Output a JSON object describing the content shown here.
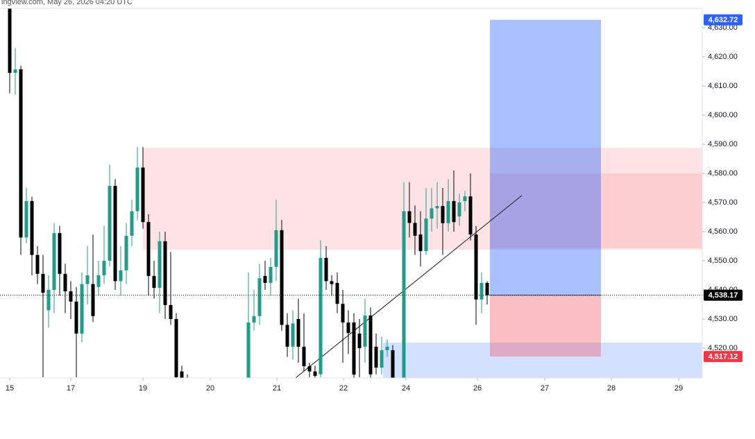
{
  "chart_data": {
    "type": "candlestick",
    "subtitle": "ingview.com, May 26, 2026 04:20 UTC",
    "x": [
      0,
      1,
      2,
      3,
      4,
      5,
      6,
      7,
      8,
      9,
      10,
      11,
      12,
      13,
      14,
      15,
      16,
      17,
      18,
      19,
      20,
      21,
      22,
      23,
      24,
      25,
      26,
      27,
      28,
      29,
      30,
      31,
      32,
      43,
      44,
      45,
      46,
      47,
      48,
      49,
      50,
      51,
      52,
      53,
      54,
      55,
      56,
      57,
      58,
      59,
      60,
      61,
      62,
      63,
      64,
      65,
      66,
      67,
      68,
      69,
      71,
      72,
      73,
      74,
      75,
      76,
      77,
      78,
      79,
      80,
      81,
      82,
      83,
      84,
      85,
      86
    ],
    "open": [
      4638,
      4614.5,
      4615.7,
      4558,
      4570.5,
      4552,
      4545.5,
      4533,
      4540,
      4559.5,
      4545.5,
      4539.5,
      4536,
      4525,
      4542,
      4542,
      4541,
      4545,
      4550,
      4575.7,
      4543,
      4546.7,
      4558.6,
      4567,
      4582,
      4563.3,
      4544.8,
      4540.7,
      4556.7,
      4534.8,
      4530,
      4512,
      4508,
      4505,
      4528.8,
      4531,
      4544.8,
      4542.4,
      4547.9,
      4560.5,
      4528,
      4520.5,
      4530,
      4520.5,
      4513.8,
      4512,
      4511,
      4551,
      4543,
      4542.4,
      4535.2,
      4528.8,
      4528.8,
      4525,
      4520.5,
      4531.2,
      4520.5,
      4513.3,
      4519.3,
      4519.3,
      4509,
      4567,
      4563,
      4559,
      4553.3,
      4564.5,
      4568,
      4568.8,
      4562.9,
      4570.5,
      4565.2,
      4570.5,
      4572.1,
      4559,
      4536.7,
      4542.4
    ],
    "high": [
      4640,
      4623,
      4617,
      4575,
      4572,
      4555,
      4552,
      4545,
      4563,
      4562,
      4549,
      4543,
      4541,
      4546,
      4555,
      4559,
      4550,
      4562,
      4583,
      4578,
      4555,
      4563,
      4571,
      4589,
      4589,
      4566,
      4550,
      4560,
      4560,
      4553,
      4532,
      4514,
      4511,
      4546,
      4540,
      4549,
      4550,
      4551,
      4571,
      4564,
      4532,
      4533,
      4537,
      4532,
      4515,
      4514,
      4557,
      4555,
      4545,
      4546,
      4540,
      4533,
      4532,
      4530,
      4537,
      4534,
      4525,
      4524,
      4523,
      4521,
      4577,
      4577,
      4569,
      4567,
      4575,
      4575,
      4577,
      4575,
      4578,
      4581,
      4573,
      4574,
      4580,
      4562,
      4546,
      4543
    ],
    "low": [
      4607.5,
      4607,
      4552,
      4556,
      4545,
      4542,
      4510,
      4527,
      4532,
      4538,
      4532,
      4530,
      4510,
      4522,
      4535,
      4529,
      4538,
      4542,
      4548,
      4540,
      4538,
      4542,
      4555,
      4564,
      4561,
      4538,
      4537,
      4532,
      4530,
      4528,
      4509,
      4503,
      4500,
      4503,
      4526,
      4528,
      4540,
      4538,
      4543,
      4526,
      4517,
      4516,
      4515,
      4512,
      4510,
      4509,
      4510,
      4540,
      4538,
      4532,
      4515,
      4518,
      4509,
      4510,
      4515,
      4509,
      4511,
      4511,
      4517,
      4508,
      4508,
      4558,
      4552,
      4548,
      4552,
      4560,
      4561,
      4552,
      4560,
      4560,
      4562,
      4567,
      4557,
      4528,
      4532,
      4535
    ],
    "close": [
      4614.5,
      4615.7,
      4558,
      4570.5,
      4552,
      4545.5,
      4539,
      4540,
      4559.5,
      4545.5,
      4539.5,
      4536,
      4525,
      4542,
      4545,
      4531,
      4545,
      4550,
      4575.7,
      4543,
      4546.7,
      4558.6,
      4567,
      4582,
      4563.3,
      4544.8,
      4540.7,
      4556.7,
      4534.8,
      4530,
      4510,
      4505,
      4502,
      4528.8,
      4531,
      4544,
      4542.4,
      4547.9,
      4560.5,
      4528,
      4520.5,
      4528.5,
      4520.5,
      4513.8,
      4512,
      4510.5,
      4551,
      4543,
      4542,
      4535.2,
      4528.8,
      4525.2,
      4510.9,
      4520,
      4531.2,
      4511,
      4513.3,
      4519.3,
      4520.5,
      4509.8,
      4567,
      4563,
      4558.6,
      4553.3,
      4564.5,
      4568,
      4568.8,
      4562.9,
      4570.5,
      4563.3,
      4570,
      4572.1,
      4559,
      4536.7,
      4542.4,
      4538.17
    ],
    "up_color": "#1e9e89",
    "down_color": "#000000",
    "xlim": [
      -1.75,
      124.75
    ],
    "xticks": [
      {
        "value": 0,
        "label": "15"
      },
      {
        "value": 11,
        "label": "17"
      },
      {
        "value": 24,
        "label": "19"
      },
      {
        "value": 36.125,
        "label": "20"
      },
      {
        "value": 48.125,
        "label": "21"
      },
      {
        "value": 60.125,
        "label": "22"
      },
      {
        "value": 71.375,
        "label": "24"
      },
      {
        "value": 84.25,
        "label": "26"
      },
      {
        "value": 96.375,
        "label": "27"
      },
      {
        "value": 108.375,
        "label": "28"
      },
      {
        "value": 120.5,
        "label": "29"
      }
    ],
    "ylim": [
      4509.76,
      4636.67
    ],
    "yticks": [
      {
        "value": 4520,
        "label": "4,520.00"
      },
      {
        "value": 4530,
        "label": "4,530.00"
      },
      {
        "value": 4540,
        "label": "4,540.00"
      },
      {
        "value": 4550,
        "label": "4,550.00"
      },
      {
        "value": 4560,
        "label": "4,560.00"
      },
      {
        "value": 4570,
        "label": "4,570.00"
      },
      {
        "value": 4580,
        "label": "4,580.00"
      },
      {
        "value": 4590,
        "label": "4,590.00"
      },
      {
        "value": 4600,
        "label": "4,600.00"
      },
      {
        "value": 4610,
        "label": "4,610.00"
      },
      {
        "value": 4620,
        "label": "4,620.00"
      },
      {
        "value": 4630,
        "label": "4,630.00"
      }
    ],
    "grid": false,
    "zones": [
      {
        "x": [
          24,
          124.75
        ],
        "y": [
          4553.8,
          4588.8
        ],
        "color": "rgba(242,54,69,0.14)"
      },
      {
        "x": [
          86.5,
          124.75
        ],
        "y": [
          4554.3,
          4580
        ],
        "color": "rgba(242,54,69,0.12)"
      },
      {
        "x": [
          67.25,
          124.75
        ],
        "y": [
          4509.76,
          4521.9
        ],
        "color": "rgba(41,98,255,0.2)"
      }
    ],
    "position": {
      "x": [
        86.5,
        106.5
      ],
      "entry": 4538.17,
      "target": {
        "value": 4632.72,
        "label": "4,632.72"
      },
      "stop": {
        "value": 4517.12,
        "label": "4,517.12"
      },
      "profit_color": "rgba(41,98,255,0.4)",
      "loss_color": "rgba(242,54,69,0.32)",
      "target_label_color": "#2962ff",
      "stop_label_color": "#f23645"
    },
    "trendline": {
      "x": [
        51.5,
        92.25
      ],
      "y": [
        4509.8,
        4572.4
      ],
      "color": "#131722"
    },
    "last_price": {
      "value": 4538.17,
      "label": "4,538.17",
      "color": "#000000"
    }
  }
}
